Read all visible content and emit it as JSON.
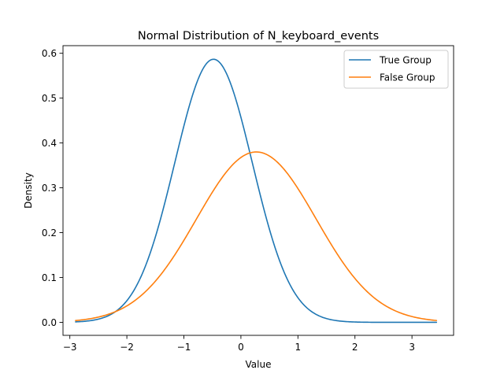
{
  "chart_data": {
    "type": "line",
    "title": "Normal Distribution of N_keyboard_events",
    "xlabel": "Value",
    "ylabel": "Density",
    "xlim": [
      -3.12,
      3.73
    ],
    "ylim": [
      -0.029,
      0.617
    ],
    "x_ticks": [
      -3,
      -2,
      -1,
      0,
      1,
      2,
      3
    ],
    "x_tick_labels": [
      "−3",
      "−2",
      "−1",
      "0",
      "1",
      "2",
      "3"
    ],
    "y_ticks": [
      0.0,
      0.1,
      0.2,
      0.3,
      0.4,
      0.5,
      0.6
    ],
    "y_tick_labels": [
      "0.0",
      "0.1",
      "0.2",
      "0.3",
      "0.4",
      "0.5",
      "0.6"
    ],
    "grid": false,
    "legend_position": "top-right",
    "x_range": [
      -2.9,
      3.43
    ],
    "series": [
      {
        "name": "True Group",
        "color": "#1f77b4",
        "distribution": "normal",
        "mean": -0.48,
        "std": 0.68,
        "peak_density": 0.587
      },
      {
        "name": "False Group",
        "color": "#ff7f0e",
        "distribution": "normal",
        "mean": 0.27,
        "std": 1.05,
        "peak_density": 0.38
      }
    ]
  }
}
